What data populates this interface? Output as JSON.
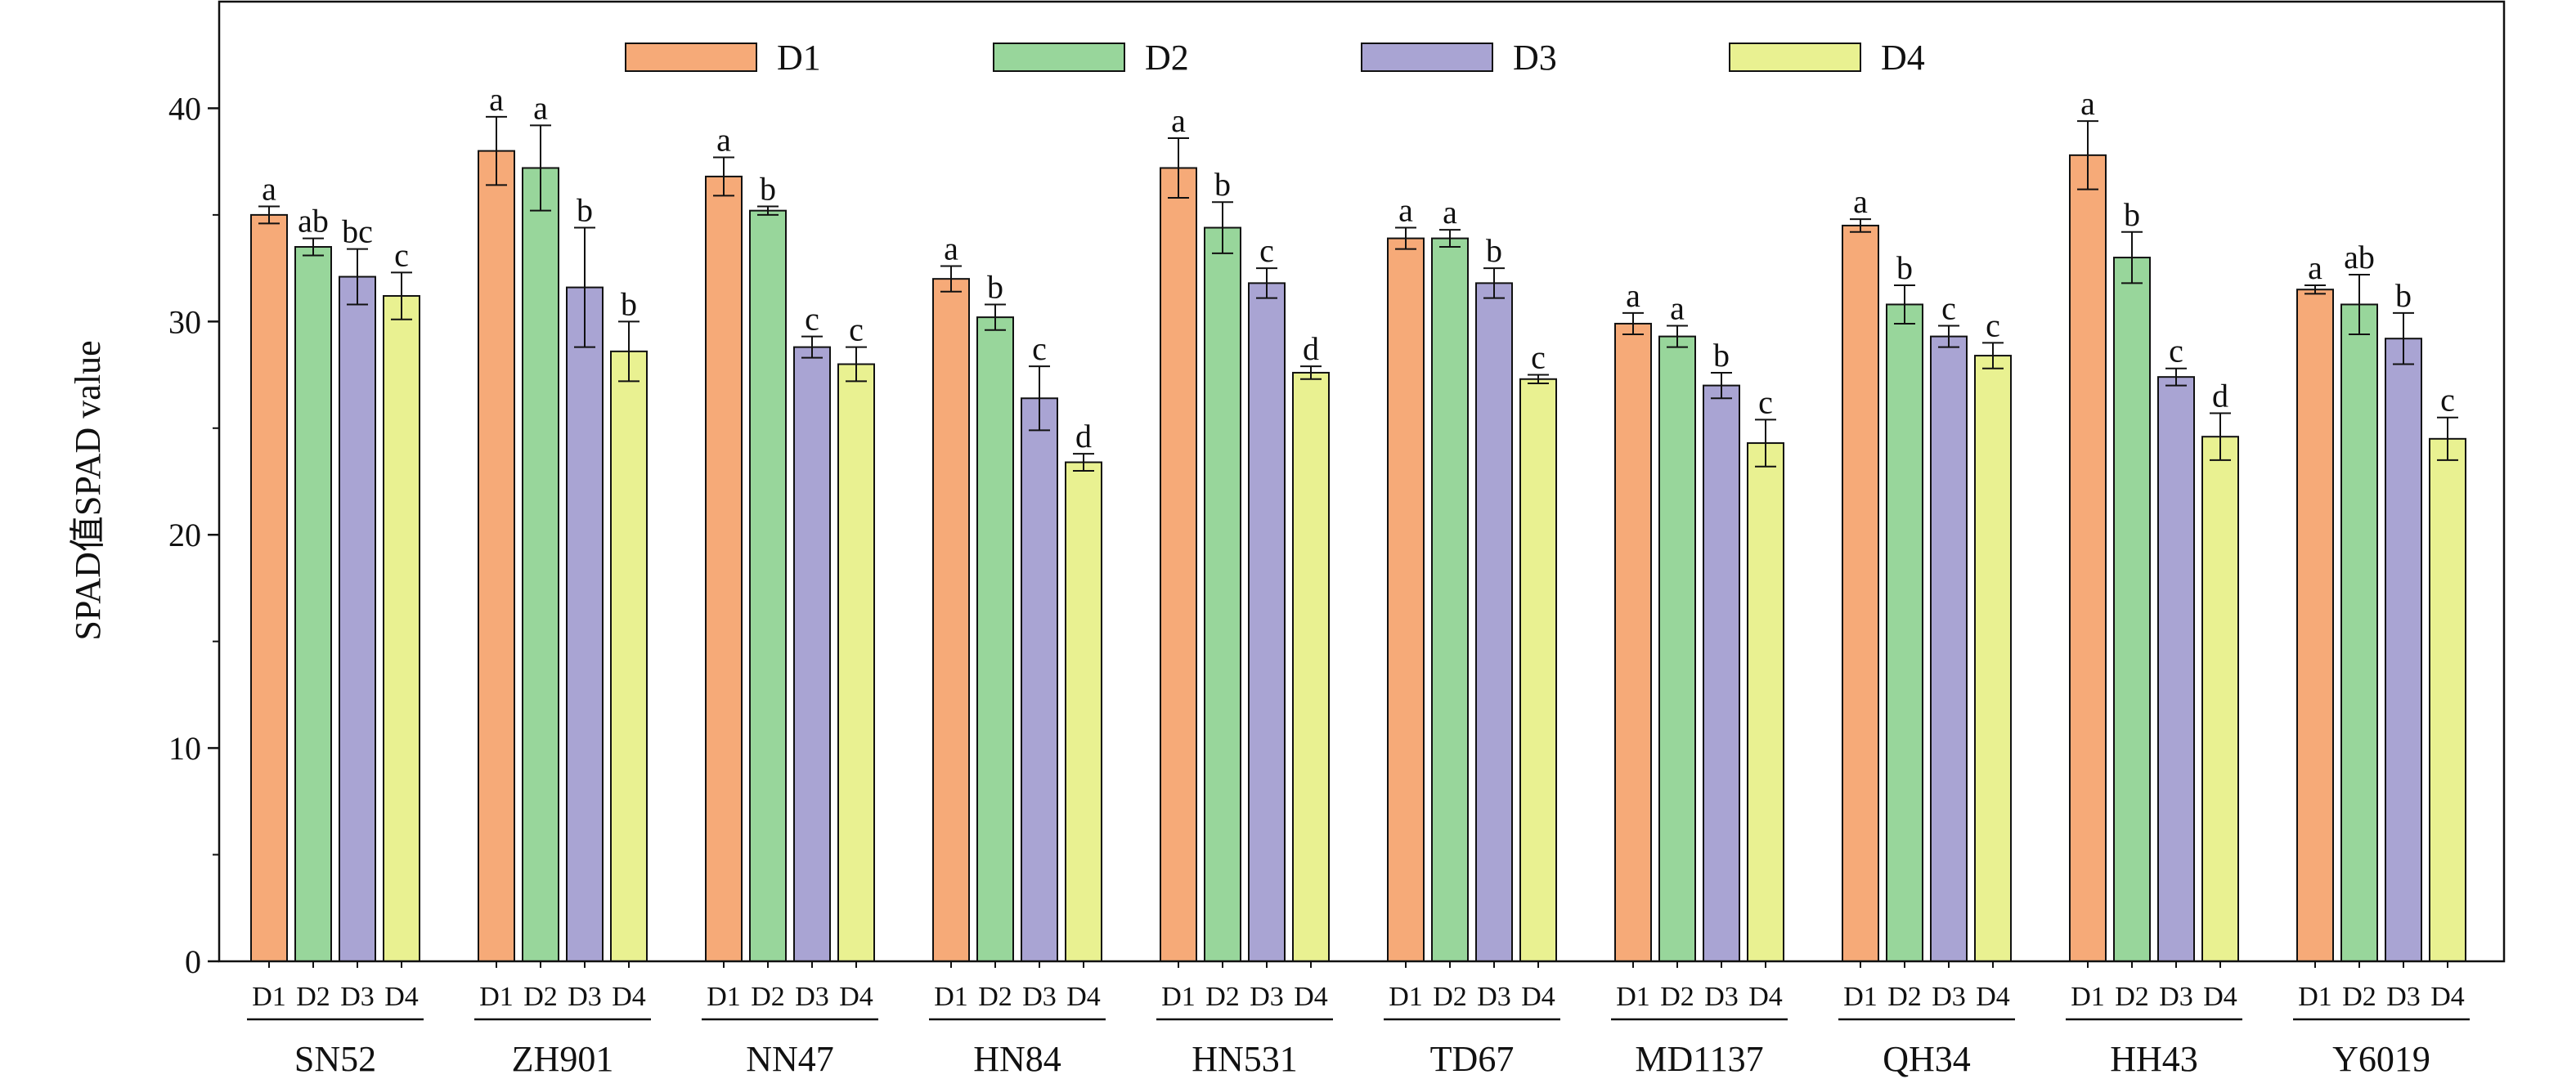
{
  "chart_data": {
    "type": "bar",
    "ylabel": "SPAD值SPAD value",
    "ylim": [
      0,
      45
    ],
    "yticks": [
      0,
      10,
      20,
      30,
      40
    ],
    "grid": false,
    "legend_position": "top",
    "categories": [
      "SN52",
      "ZH901",
      "NN47",
      "HN84",
      "HN531",
      "TD67",
      "MD1137",
      "QH34",
      "HH43",
      "Y6019"
    ],
    "sub_tick_labels": [
      "D1",
      "D2",
      "D3",
      "D4"
    ],
    "series": [
      {
        "name": "D1",
        "color": "#F6AA78",
        "values": [
          35.0,
          38.0,
          36.8,
          32.0,
          37.2,
          33.9,
          29.9,
          34.5,
          37.8,
          31.5
        ],
        "errors": [
          0.4,
          1.6,
          0.9,
          0.6,
          1.4,
          0.5,
          0.5,
          0.3,
          1.6,
          0.2
        ],
        "letters": [
          "a",
          "a",
          "a",
          "a",
          "a",
          "a",
          "a",
          "a",
          "a",
          "a"
        ]
      },
      {
        "name": "D2",
        "color": "#98D69B",
        "values": [
          33.5,
          37.2,
          35.2,
          30.2,
          34.4,
          33.9,
          29.3,
          30.8,
          33.0,
          30.8
        ],
        "errors": [
          0.4,
          2.0,
          0.2,
          0.6,
          1.2,
          0.4,
          0.5,
          0.9,
          1.2,
          1.4
        ],
        "letters": [
          "ab",
          "a",
          "b",
          "b",
          "b",
          "a",
          "a",
          "b",
          "b",
          "ab"
        ]
      },
      {
        "name": "D3",
        "color": "#A9A4D3",
        "values": [
          32.1,
          31.6,
          28.8,
          26.4,
          31.8,
          31.8,
          27.0,
          29.3,
          27.4,
          29.2
        ],
        "errors": [
          1.3,
          2.8,
          0.5,
          1.5,
          0.7,
          0.7,
          0.6,
          0.5,
          0.4,
          1.2
        ],
        "letters": [
          "bc",
          "b",
          "c",
          "c",
          "c",
          "b",
          "b",
          "c",
          "c",
          "b"
        ]
      },
      {
        "name": "D4",
        "color": "#E9F191",
        "values": [
          31.2,
          28.6,
          28.0,
          23.4,
          27.6,
          27.3,
          24.3,
          28.4,
          24.6,
          24.5
        ],
        "errors": [
          1.1,
          1.4,
          0.8,
          0.4,
          0.3,
          0.2,
          1.1,
          0.6,
          1.1,
          1.0
        ],
        "letters": [
          "c",
          "b",
          "c",
          "d",
          "d",
          "c",
          "c",
          "c",
          "d",
          "c"
        ]
      }
    ]
  }
}
